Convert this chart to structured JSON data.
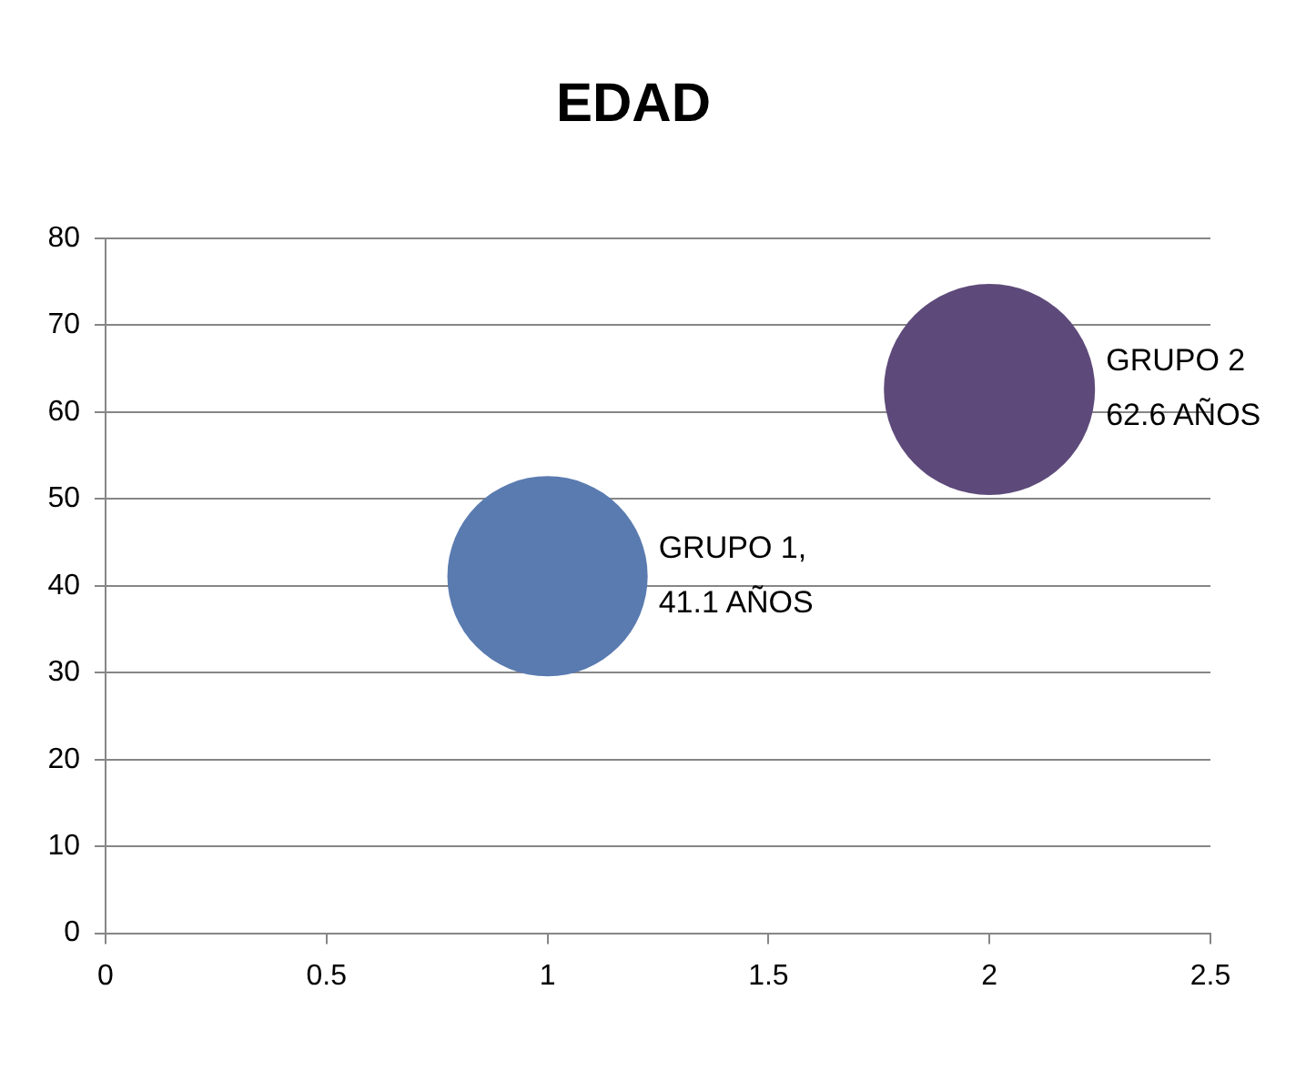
{
  "chart_data": {
    "type": "bubble",
    "title": "EDAD",
    "x": [
      1,
      2
    ],
    "values": [
      41.1,
      62.6
    ],
    "sizes": [
      0.9,
      1
    ],
    "colors": [
      "#5a7bb0",
      "#5e4a7a"
    ],
    "value_labels": [
      "GRUPO 1,\n41.1 AÑOS",
      "GRUPO 2\n62.6 AÑOS"
    ],
    "xlim": [
      0,
      2.5
    ],
    "xticks": [
      0,
      0.5,
      1,
      1.5,
      2,
      2.5
    ],
    "ylim": [
      0,
      80
    ],
    "yticks": [
      0,
      10,
      20,
      30,
      40,
      50,
      60,
      70,
      80
    ],
    "grid": "y",
    "legend": false
  }
}
